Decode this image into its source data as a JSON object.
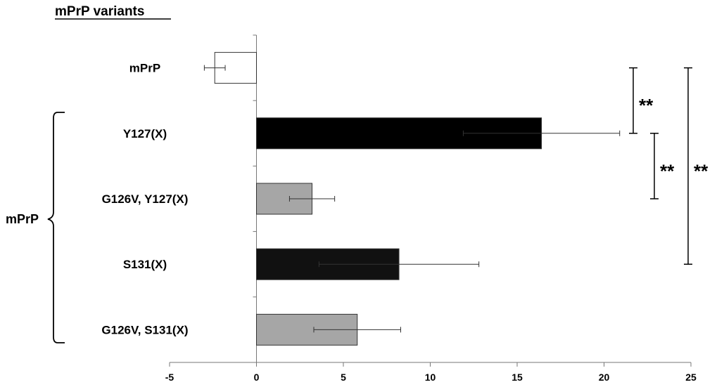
{
  "chart_data": {
    "type": "bar",
    "orientation": "horizontal",
    "title": "mPrP variants",
    "group_label": "mPrP",
    "categories": [
      "mPrP",
      "Y127(X)",
      "G126V, Y127(X)",
      "S131(X)",
      "G126V, S131(X)"
    ],
    "values": [
      -2.4,
      16.4,
      3.2,
      8.2,
      5.8
    ],
    "errors": [
      0.6,
      4.5,
      1.3,
      4.6,
      2.5
    ],
    "colors": [
      "#ffffff",
      "#000000",
      "#a6a6a6",
      "#111111",
      "#a6a6a6"
    ],
    "xlim": [
      -5,
      25
    ],
    "xticks": [
      -5,
      0,
      5,
      10,
      15,
      20,
      25
    ],
    "grid": false,
    "significance": [
      {
        "from": "mPrP",
        "to": "Y127(X)",
        "label": "**"
      },
      {
        "from": "Y127(X)",
        "to": "G126V, Y127(X)",
        "label": "**"
      },
      {
        "from": "mPrP",
        "to": "S131(X)",
        "label": "**"
      }
    ]
  }
}
